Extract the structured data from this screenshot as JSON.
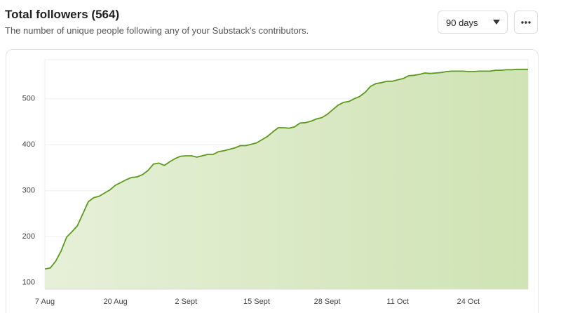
{
  "controls": {
    "range": "90 days"
  },
  "chart_data": {
    "type": "area",
    "title": "Total followers (564)",
    "subtitle": "The number of unique people following any of your Substack's contributors.",
    "categories": [
      "7 Aug",
      null,
      null,
      null,
      null,
      null,
      null,
      null,
      null,
      null,
      null,
      null,
      null,
      "20 Aug",
      null,
      null,
      null,
      null,
      null,
      null,
      null,
      null,
      null,
      null,
      null,
      null,
      "2 Sept",
      null,
      null,
      null,
      null,
      null,
      null,
      null,
      null,
      null,
      null,
      null,
      null,
      "15 Sept",
      null,
      null,
      null,
      null,
      null,
      null,
      null,
      null,
      null,
      null,
      null,
      null,
      "28 Sept",
      null,
      null,
      null,
      null,
      null,
      null,
      null,
      null,
      null,
      null,
      null,
      null,
      "11 Oct",
      null,
      null,
      null,
      null,
      null,
      null,
      null,
      null,
      null,
      null,
      null,
      null,
      "24 Oct",
      null,
      null,
      null,
      null,
      null,
      null,
      null,
      null,
      null,
      null,
      null
    ],
    "values": [
      130,
      132,
      147,
      169,
      199,
      211,
      224,
      250,
      276,
      285,
      288,
      295,
      302,
      312,
      318,
      324,
      329,
      330,
      335,
      344,
      358,
      360,
      355,
      363,
      370,
      375,
      376,
      376,
      373,
      376,
      379,
      379,
      385,
      387,
      390,
      393,
      398,
      398,
      401,
      404,
      411,
      418,
      428,
      437,
      437,
      436,
      439,
      447,
      448,
      451,
      456,
      459,
      466,
      476,
      486,
      492,
      494,
      500,
      505,
      514,
      527,
      533,
      535,
      538,
      538,
      541,
      544,
      550,
      551,
      553,
      556,
      555,
      556,
      557,
      559,
      560,
      560,
      560,
      559,
      559,
      560,
      560,
      560,
      562,
      562,
      563,
      563,
      564,
      564,
      564
    ],
    "color": "#5b9a1b",
    "ylim": [
      86,
      585
    ],
    "yticks": [
      100,
      200,
      300,
      400,
      500
    ],
    "grid": true
  }
}
